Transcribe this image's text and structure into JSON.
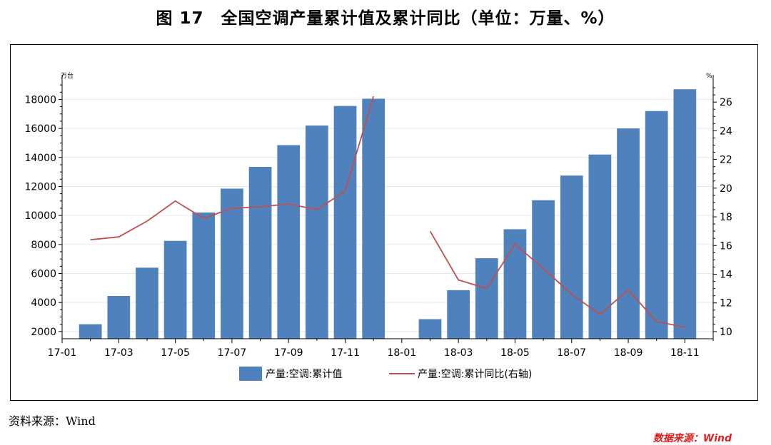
{
  "title": "图 17　全国空调产量累计值及累计同比（单位：万量、%）",
  "data_source_label": "数据来源：Wind",
  "source_note": "资料来源：Wind",
  "chart_data": {
    "type": "bar",
    "x": [
      "17-02",
      "17-03",
      "17-04",
      "17-05",
      "17-06",
      "17-07",
      "17-08",
      "17-09",
      "17-10",
      "17-11",
      "17-12",
      "18-01",
      "18-02",
      "18-03",
      "18-04",
      "18-05",
      "18-06",
      "18-07",
      "18-08",
      "18-09",
      "18-10",
      "18-11"
    ],
    "x_tick_labels": [
      "17-01",
      "17-03",
      "17-05",
      "17-07",
      "17-09",
      "17-11",
      "18-01",
      "18-03",
      "18-05",
      "18-07",
      "18-09",
      "18-11"
    ],
    "y_left": {
      "unit": "万台",
      "range": [
        1500,
        19300
      ],
      "ticks": [
        2000,
        4000,
        6000,
        8000,
        10000,
        12000,
        14000,
        16000,
        18000
      ]
    },
    "y_right": {
      "unit": "%",
      "range": [
        9.5,
        27.5
      ],
      "ticks": [
        10,
        12,
        14,
        16,
        18,
        20,
        22,
        24,
        26
      ]
    },
    "series": [
      {
        "name": "产量:空调:累计值",
        "type": "bar",
        "axis": "left",
        "color": "#4f81bd",
        "values": [
          2500,
          4450,
          6400,
          8250,
          10200,
          11850,
          13350,
          14850,
          16200,
          17550,
          18050,
          null,
          2850,
          4850,
          7050,
          9050,
          11050,
          12750,
          14200,
          16000,
          17200,
          18700
        ]
      },
      {
        "name": "产量:空调:累计同比(右轴)",
        "type": "line",
        "axis": "right",
        "color": "#c0504d",
        "values": [
          16.4,
          16.6,
          17.7,
          19.1,
          17.9,
          18.6,
          18.7,
          18.9,
          18.5,
          19.8,
          26.4,
          null,
          17.0,
          13.6,
          13.0,
          16.1,
          14.4,
          12.6,
          11.2,
          12.9,
          10.7,
          10.3
        ]
      }
    ],
    "legend_position": "bottom",
    "grid": true
  }
}
